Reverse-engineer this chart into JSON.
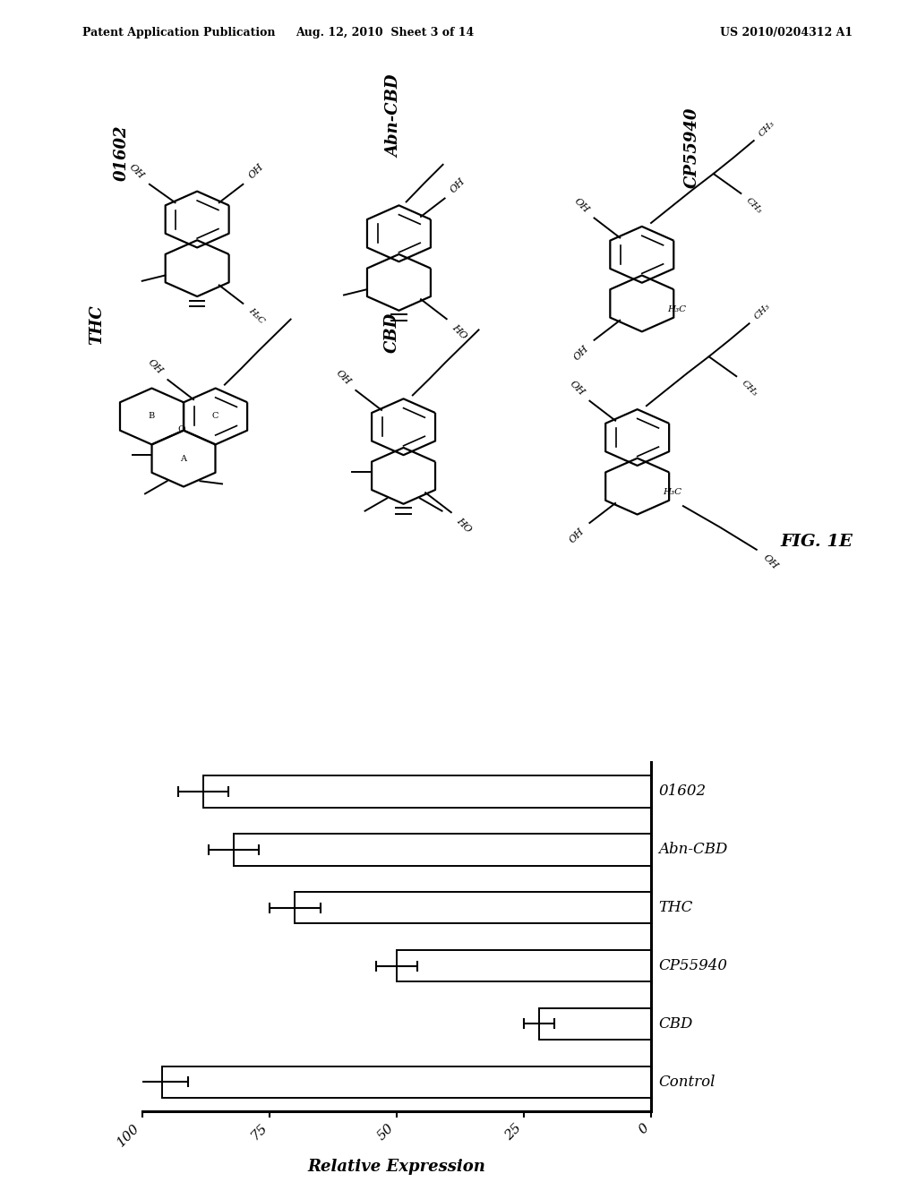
{
  "header_left": "Patent Application Publication",
  "header_center": "Aug. 12, 2010  Sheet 3 of 14",
  "header_right": "US 2010/0204312 A1",
  "fig_label": "FIG. 1E",
  "bar_labels": [
    "01602",
    "Abn-CBD",
    "THC",
    "CP55940",
    "CBD",
    "Control"
  ],
  "bar_values": [
    88,
    82,
    70,
    50,
    22,
    96
  ],
  "bar_errors": [
    5,
    5,
    5,
    4,
    3,
    5
  ],
  "x_ticks": [
    100,
    75,
    50,
    25,
    0
  ],
  "x_label": "Relative Expression",
  "x_min": 0,
  "x_max": 100,
  "bar_color": "#ffffff",
  "bar_edgecolor": "#000000",
  "background_color": "#ffffff"
}
